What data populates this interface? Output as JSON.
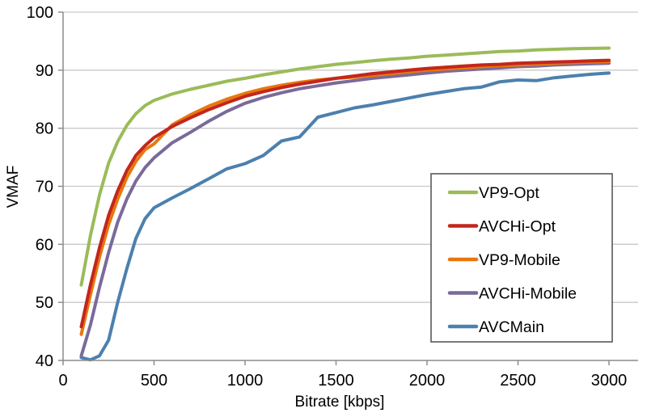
{
  "chart_data": {
    "type": "line",
    "title": "",
    "xlabel": "Bitrate [kbps]",
    "ylabel": "VMAF",
    "xlim": [
      0,
      3000
    ],
    "ylim": [
      40,
      100
    ],
    "x_ticks": [
      0,
      500,
      1000,
      1500,
      2000,
      2500,
      3000
    ],
    "y_ticks": [
      40,
      50,
      60,
      70,
      80,
      90,
      100
    ],
    "grid": "horizontal-only",
    "gridline_color": "#c9c9c9",
    "axis_color": "#8c8c8c",
    "legend_position": "boxed-right-middle",
    "legend_border_color": "#595959",
    "x": [
      100,
      150,
      200,
      250,
      300,
      350,
      400,
      450,
      500,
      600,
      700,
      800,
      900,
      1000,
      1100,
      1200,
      1300,
      1400,
      1500,
      1600,
      1700,
      1800,
      1900,
      2000,
      2100,
      2200,
      2300,
      2400,
      2500,
      2600,
      2700,
      2800,
      2900,
      3000
    ],
    "series": [
      {
        "name": "VP9-Opt",
        "color": "#9bbb59",
        "values": [
          53,
          61.5,
          68.5,
          74,
          77.7,
          80.5,
          82.5,
          83.9,
          84.8,
          85.9,
          86.7,
          87.4,
          88.1,
          88.6,
          89.2,
          89.7,
          90.2,
          90.6,
          91,
          91.3,
          91.6,
          91.9,
          92.1,
          92.4,
          92.6,
          92.8,
          93,
          93.2,
          93.3,
          93.5,
          93.6,
          93.7,
          93.75,
          93.8
        ]
      },
      {
        "name": "AVCHi-Opt",
        "color": "#c3261c",
        "values": [
          45.8,
          53,
          59.4,
          65,
          69.2,
          72.7,
          75.3,
          77,
          78.4,
          80.3,
          81.8,
          83.2,
          84.4,
          85.5,
          86.3,
          87,
          87.6,
          88.1,
          88.6,
          89,
          89.4,
          89.7,
          90,
          90.3,
          90.5,
          90.7,
          90.9,
          91,
          91.2,
          91.3,
          91.4,
          91.5,
          91.6,
          91.7
        ]
      },
      {
        "name": "VP9-Mobile",
        "color": "#e8770d",
        "values": [
          44.5,
          51.3,
          57.8,
          63.4,
          67.8,
          71.5,
          74.3,
          76.3,
          77.3,
          80.6,
          82.3,
          83.8,
          85,
          86,
          86.8,
          87.4,
          87.9,
          88.3,
          88.6,
          88.8,
          89.1,
          89.4,
          89.7,
          90,
          90.2,
          90.4,
          90.6,
          90.8,
          90.9,
          91,
          91.2,
          91.3,
          91.4,
          91.5
        ]
      },
      {
        "name": "AVCHi-Mobile",
        "color": "#7a6a99",
        "values": [
          40.8,
          46.1,
          52.6,
          58.6,
          63.8,
          67.8,
          70.9,
          73.2,
          74.9,
          77.5,
          79.3,
          81.2,
          82.9,
          84.3,
          85.3,
          86.1,
          86.8,
          87.3,
          87.8,
          88.2,
          88.6,
          88.9,
          89.2,
          89.5,
          89.8,
          90,
          90.2,
          90.4,
          90.6,
          90.7,
          90.9,
          91,
          91.1,
          91.2
        ]
      },
      {
        "name": "AVCMain",
        "color": "#4c80ae",
        "values": [
          40.5,
          40.1,
          40.8,
          43.5,
          50,
          55.8,
          61,
          64.4,
          66.3,
          68,
          69.6,
          71.3,
          73,
          73.9,
          75.3,
          77.8,
          78.5,
          81.9,
          82.7,
          83.5,
          84,
          84.6,
          85.2,
          85.8,
          86.3,
          86.8,
          87.1,
          88,
          88.3,
          88.2,
          88.7,
          89,
          89.3,
          89.5
        ]
      }
    ]
  }
}
